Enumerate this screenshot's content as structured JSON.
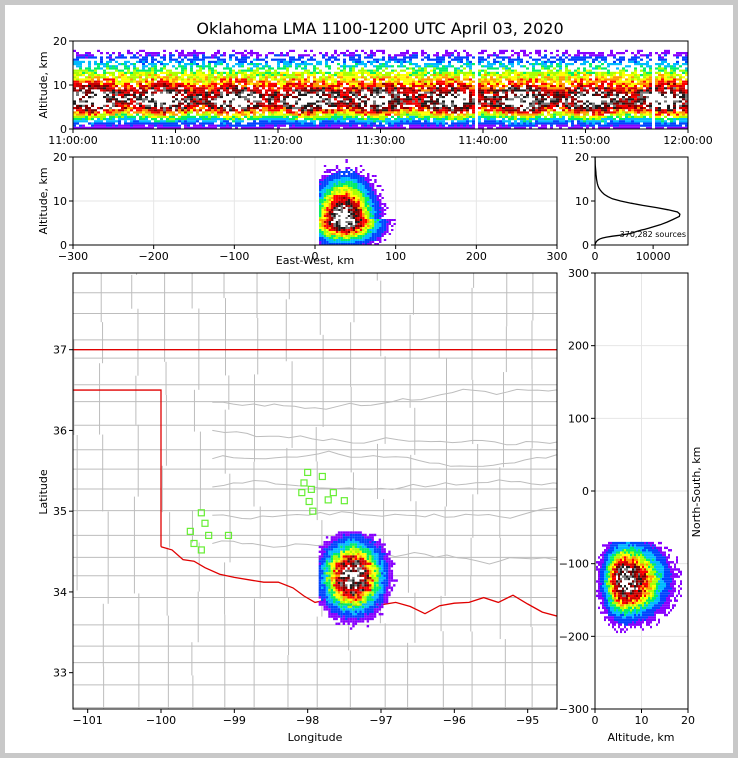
{
  "title": "Oklahoma LMA 1100-1200 UTC April 03, 2020",
  "chart_data": [
    {
      "id": "time_altitude",
      "type": "heatmap",
      "xlabel": "",
      "ylabel": "Altitude, km",
      "x_ticks": [
        "11:00:00",
        "11:10:00",
        "11:20:00",
        "11:30:00",
        "11:40:00",
        "11:50:00",
        "12:00:00"
      ],
      "y_ticks": [
        0,
        10,
        20
      ],
      "xlim": [
        0,
        60
      ],
      "ylim": [
        0,
        20
      ],
      "x_units": "minutes after 11:00 UTC",
      "peak_altitude_km": 6.5
    },
    {
      "id": "ew_altitude",
      "type": "heatmap",
      "xlabel": "East-West, km",
      "ylabel": "Altitude, km",
      "x_ticks": [
        -300,
        -200,
        -100,
        0,
        100,
        200,
        300
      ],
      "y_ticks": [
        0,
        10,
        20
      ],
      "xlim": [
        -300,
        300
      ],
      "ylim": [
        0,
        20
      ],
      "grid": true,
      "center_x_km": 35,
      "center_alt_km": 6
    },
    {
      "id": "altitude_histogram",
      "type": "line",
      "x_ticks": [
        0,
        10000
      ],
      "y_ticks": [
        0,
        10,
        20
      ],
      "xlim": [
        0,
        16000
      ],
      "ylim": [
        0,
        20
      ],
      "annotation": "370,282 sources",
      "x": [
        0,
        40,
        80,
        150,
        250,
        400,
        600,
        900,
        1300,
        2000,
        3000,
        4200,
        5200,
        6000,
        6500,
        7000,
        7500,
        8000,
        8600,
        9200,
        10200,
        11200,
        12400,
        13400,
        14500,
        14600,
        14200,
        12600,
        10600,
        8200,
        6200,
        4400,
        3000,
        2200,
        1600,
        1200,
        900,
        650,
        500,
        400,
        320,
        260,
        220,
        180,
        150,
        120,
        90,
        60,
        40,
        30,
        20,
        10,
        0
      ],
      "y": [
        0.0,
        0.2,
        0.4,
        0.6,
        0.8,
        1.0,
        1.2,
        1.4,
        1.6,
        1.8,
        2.0,
        2.2,
        2.4,
        2.6,
        2.8,
        3.0,
        3.2,
        3.4,
        3.6,
        3.8,
        4.2,
        4.6,
        5.2,
        5.8,
        6.5,
        7.0,
        7.5,
        8.0,
        8.5,
        9.0,
        9.5,
        10.0,
        10.5,
        11.0,
        11.5,
        12.0,
        12.5,
        13.0,
        13.5,
        14.0,
        14.5,
        15.0,
        15.5,
        16.0,
        16.5,
        17.0,
        17.5,
        18.0,
        18.5,
        19.0,
        19.5,
        19.8,
        20.0
      ]
    },
    {
      "id": "plan_view",
      "type": "heatmap",
      "xlabel": "Longitude",
      "ylabel": "Latitude",
      "x_ticks": [
        -101,
        -100,
        -99,
        -98,
        -97,
        -96,
        -95
      ],
      "y_ticks": [
        33,
        34,
        35,
        36,
        37
      ],
      "xlim": [
        -101.2,
        -94.6
      ],
      "ylim": [
        32.55,
        37.95
      ],
      "storm_center": [
        -97.4,
        34.2
      ],
      "stations": [
        [
          -99.45,
          34.98
        ],
        [
          -99.4,
          34.85
        ],
        [
          -99.6,
          34.75
        ],
        [
          -99.35,
          34.7
        ],
        [
          -99.55,
          34.6
        ],
        [
          -99.45,
          34.52
        ],
        [
          -99.08,
          34.7
        ],
        [
          -98.0,
          35.48
        ],
        [
          -97.8,
          35.43
        ],
        [
          -98.05,
          35.35
        ],
        [
          -97.95,
          35.27
        ],
        [
          -98.08,
          35.23
        ],
        [
          -97.65,
          35.23
        ],
        [
          -97.72,
          35.14
        ],
        [
          -97.5,
          35.13
        ],
        [
          -97.98,
          35.12
        ],
        [
          -97.93,
          35.0
        ]
      ]
    },
    {
      "id": "ns_altitude",
      "type": "heatmap",
      "xlabel": "Altitude, km",
      "ylabel": "North-South, km",
      "x_ticks": [
        0,
        10,
        20
      ],
      "y_ticks": [
        -300,
        -200,
        -100,
        0,
        100,
        200,
        300
      ],
      "xlim": [
        0,
        20
      ],
      "ylim": [
        -300,
        300
      ],
      "grid": true,
      "center_ns_km": -122,
      "center_alt_km": 6
    }
  ]
}
